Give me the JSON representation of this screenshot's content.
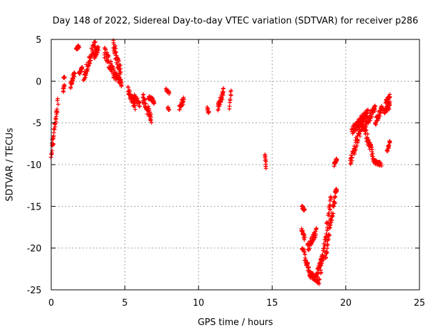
{
  "chart_data": {
    "type": "scatter",
    "title": "Day 148 of 2022, Sidereal Day-to-day VTEC variation (SDTVAR) for receiver p286",
    "xlabel": "GPS time / hours",
    "ylabel": "SDTVAR / TECUs",
    "xlim": [
      0,
      25
    ],
    "ylim": [
      -25,
      5
    ],
    "xticks": [
      0,
      5,
      10,
      15,
      20,
      25
    ],
    "yticks": [
      5,
      0,
      -5,
      -10,
      -15,
      -20,
      -25
    ],
    "grid": true,
    "marker": "+",
    "color": "#ff0000",
    "segments": [
      {
        "t0": 0.0,
        "t1": 0.45,
        "v0": -9.0,
        "v1": -2.3,
        "spread": 1.6
      },
      {
        "t0": 0.8,
        "t1": 0.9,
        "v0": -1.3,
        "v1": -0.5,
        "spread": 0.5
      },
      {
        "t0": 0.85,
        "t1": 0.9,
        "v0": 0.5,
        "v1": 0.4,
        "spread": 0.2
      },
      {
        "t0": 1.3,
        "t1": 1.6,
        "v0": -0.5,
        "v1": 1.0,
        "spread": 0.8
      },
      {
        "t0": 1.7,
        "t1": 1.9,
        "v0": 3.8,
        "v1": 4.2,
        "spread": 0.4
      },
      {
        "t0": 1.9,
        "t1": 2.1,
        "v0": 1.0,
        "v1": 1.5,
        "spread": 0.6
      },
      {
        "t0": 2.2,
        "t1": 3.0,
        "v0": 0.5,
        "v1": 4.7,
        "spread": 1.3
      },
      {
        "t0": 2.9,
        "t1": 3.2,
        "v0": 3.0,
        "v1": 4.0,
        "spread": 1.0
      },
      {
        "t0": 3.6,
        "t1": 4.4,
        "v0": 3.6,
        "v1": 0.4,
        "spread": 1.4
      },
      {
        "t0": 4.2,
        "t1": 4.7,
        "v0": 4.5,
        "v1": 1.0,
        "spread": 1.6
      },
      {
        "t0": 4.4,
        "t1": 4.8,
        "v0": 0.8,
        "v1": -0.3,
        "spread": 0.8
      },
      {
        "t0": 5.2,
        "t1": 5.7,
        "v0": -1.0,
        "v1": -3.0,
        "spread": 1.0
      },
      {
        "t0": 5.6,
        "t1": 6.0,
        "v0": -1.8,
        "v1": -2.8,
        "spread": 0.8
      },
      {
        "t0": 6.2,
        "t1": 6.8,
        "v0": -2.0,
        "v1": -4.5,
        "spread": 1.2
      },
      {
        "t0": 6.6,
        "t1": 7.0,
        "v0": -1.8,
        "v1": -2.5,
        "spread": 0.6
      },
      {
        "t0": 7.8,
        "t1": 8.0,
        "v0": -1.0,
        "v1": -1.4,
        "spread": 0.3
      },
      {
        "t0": 7.9,
        "t1": 8.0,
        "v0": -3.2,
        "v1": -3.6,
        "spread": 0.3
      },
      {
        "t0": 8.7,
        "t1": 9.0,
        "v0": -3.2,
        "v1": -2.2,
        "spread": 0.8
      },
      {
        "t0": 10.6,
        "t1": 10.7,
        "v0": -3.2,
        "v1": -3.8,
        "spread": 0.4
      },
      {
        "t0": 11.3,
        "t1": 11.7,
        "v0": -3.3,
        "v1": -1.3,
        "spread": 1.0
      },
      {
        "t0": 12.1,
        "t1": 12.2,
        "v0": -3.2,
        "v1": -1.0,
        "spread": 0.5
      },
      {
        "t0": 14.5,
        "t1": 14.6,
        "v0": -9.0,
        "v1": -10.4,
        "spread": 0.7
      },
      {
        "t0": 17.0,
        "t1": 17.2,
        "v0": -15.0,
        "v1": -15.5,
        "spread": 0.4
      },
      {
        "t0": 17.0,
        "t1": 17.2,
        "v0": -17.8,
        "v1": -18.8,
        "spread": 0.6
      },
      {
        "t0": 17.0,
        "t1": 17.2,
        "v0": -20.0,
        "v1": -20.4,
        "spread": 0.3
      },
      {
        "t0": 17.2,
        "t1": 17.6,
        "v0": -21.0,
        "v1": -23.2,
        "spread": 0.8
      },
      {
        "t0": 17.5,
        "t1": 18.2,
        "v0": -23.0,
        "v1": -24.0,
        "spread": 0.7
      },
      {
        "t0": 17.4,
        "t1": 18.0,
        "v0": -20.0,
        "v1": -18.0,
        "spread": 1.0
      },
      {
        "t0": 18.0,
        "t1": 18.4,
        "v0": -23.5,
        "v1": -21.0,
        "spread": 0.9
      },
      {
        "t0": 18.3,
        "t1": 19.0,
        "v0": -22.5,
        "v1": -14.0,
        "spread": 1.4
      },
      {
        "t0": 18.6,
        "t1": 19.4,
        "v0": -21.0,
        "v1": -12.5,
        "spread": 1.4
      },
      {
        "t0": 19.2,
        "t1": 19.4,
        "v0": -10.0,
        "v1": -9.3,
        "spread": 0.5
      },
      {
        "t0": 20.3,
        "t1": 21.2,
        "v0": -9.8,
        "v1": -4.5,
        "spread": 1.2
      },
      {
        "t0": 20.4,
        "t1": 21.5,
        "v0": -6.0,
        "v1": -3.8,
        "spread": 1.0
      },
      {
        "t0": 21.0,
        "t1": 21.9,
        "v0": -4.5,
        "v1": -9.2,
        "spread": 1.2
      },
      {
        "t0": 21.2,
        "t1": 22.0,
        "v0": -5.5,
        "v1": -3.2,
        "spread": 1.0
      },
      {
        "t0": 21.9,
        "t1": 22.4,
        "v0": -9.6,
        "v1": -10.0,
        "spread": 0.5
      },
      {
        "t0": 22.0,
        "t1": 22.5,
        "v0": -5.0,
        "v1": -3.0,
        "spread": 0.8
      },
      {
        "t0": 22.6,
        "t1": 23.0,
        "v0": -3.8,
        "v1": -2.8,
        "spread": 0.8
      },
      {
        "t0": 22.7,
        "t1": 23.0,
        "v0": -2.5,
        "v1": -1.8,
        "spread": 0.5
      },
      {
        "t0": 22.8,
        "t1": 23.0,
        "v0": -8.5,
        "v1": -7.2,
        "spread": 0.5
      }
    ]
  }
}
